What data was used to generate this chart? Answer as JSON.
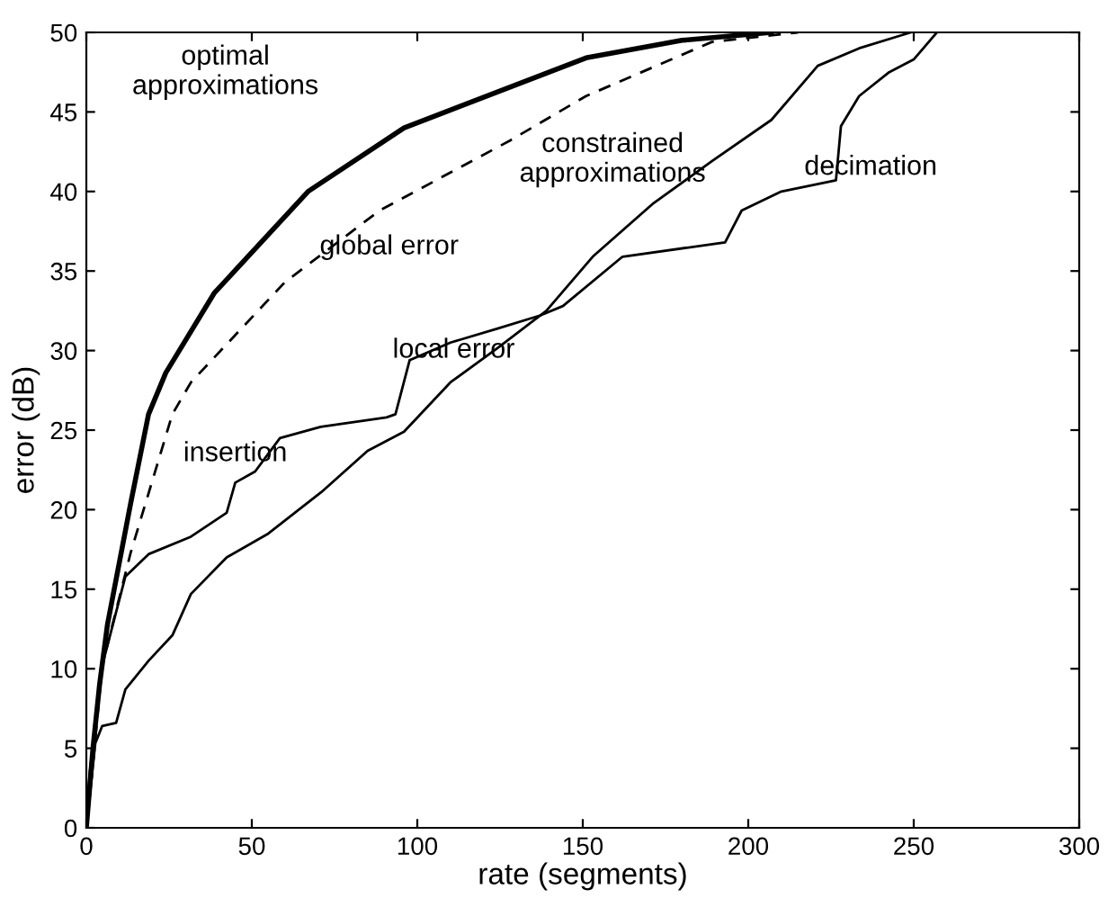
{
  "chart_data": {
    "type": "line",
    "xlabel": "rate (segments)",
    "ylabel": "error (dB)",
    "xlim": [
      0,
      300
    ],
    "xticks": [
      0,
      50,
      100,
      150,
      200,
      250,
      300
    ],
    "ylim": [
      0,
      50
    ],
    "yticks": [
      0,
      5,
      10,
      15,
      20,
      25,
      30,
      35,
      40,
      45,
      50
    ],
    "grid": false,
    "legend": false,
    "series": [
      {
        "color": "#000000",
        "line_style": "solid",
        "x": [
          0,
          2,
          4,
          6.4,
          13.4,
          18.8,
          24,
          38.6,
          67,
          96,
          151,
          180,
          207
        ],
        "values": [
          0,
          5,
          9,
          12.8,
          20.4,
          26,
          28.6,
          33.6,
          40,
          44,
          48.4,
          49.5,
          50
        ]
      },
      {
        "color": "#000000",
        "line_style": "dashed",
        "x": [
          0,
          2,
          4.8,
          13.4,
          26,
          31.6,
          60,
          88.6,
          128,
          151,
          189,
          215
        ],
        "values": [
          0,
          4,
          10.2,
          17.3,
          26,
          28,
          34.3,
          38.8,
          43.2,
          46,
          49.4,
          50
        ]
      },
      {
        "color": "#000000",
        "line_style": "solid",
        "x": [
          0,
          1,
          4.8,
          11.8,
          18.8,
          31.6,
          42.4,
          45,
          51,
          58.5,
          70.8,
          90.7,
          93.4,
          97.7,
          110,
          124.5,
          137,
          144,
          162,
          193,
          198,
          210,
          226.5,
          228,
          233.5,
          242.6,
          250,
          257
        ],
        "values": [
          0,
          3.4,
          10.2,
          15.8,
          17.2,
          18.3,
          19.8,
          21.7,
          22.4,
          24.5,
          25.2,
          25.8,
          26,
          29.4,
          30.5,
          31.4,
          32.2,
          32.8,
          35.9,
          36.8,
          38.8,
          40,
          40.7,
          44.1,
          46,
          47.5,
          48.3,
          50
        ]
      },
      {
        "color": "#000000",
        "line_style": "solid",
        "x": [
          0,
          2.7,
          4.8,
          9,
          11.8,
          18.8,
          26,
          31.6,
          42.4,
          55,
          71,
          85,
          96,
          110,
          124.5,
          139,
          153,
          171,
          189,
          207,
          221,
          233.5,
          246,
          249
        ],
        "values": [
          0,
          5.3,
          6.4,
          6.6,
          8.7,
          10.5,
          12.1,
          14.7,
          17,
          18.5,
          21.1,
          23.7,
          24.9,
          28,
          30.2,
          32.5,
          35.9,
          39.2,
          41.9,
          44.5,
          47.9,
          49,
          49.8,
          50
        ]
      }
    ],
    "annotations": [
      "optimal\napproximations",
      "constrained\napproximations",
      "global error",
      "local error",
      "insertion",
      "decimation"
    ]
  }
}
